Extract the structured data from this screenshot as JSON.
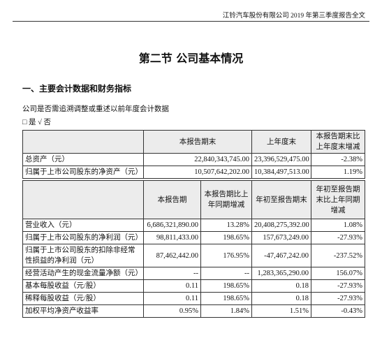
{
  "header": {
    "text": "江铃汽车股份有限公司 2019 年第三季度报告全文"
  },
  "title": "第二节 公司基本情况",
  "section": "一、主要会计数据和财务指标",
  "question": "公司是否需追溯调整或重述以前年度会计数据",
  "answer": "□ 是 √ 否",
  "table1": {
    "headers": [
      "本报告期末",
      "上年度末",
      "本报告期末比上年度末增减"
    ],
    "rows": [
      [
        "总资产（元）",
        "22,840,343,745.00",
        "23,396,529,475.00",
        "-2.38%"
      ],
      [
        "归属于上市公司股东的净资产（元）",
        "10,507,642,202.00",
        "10,384,497,513.00",
        "1.19%"
      ]
    ]
  },
  "table2": {
    "headers": [
      "本报告期",
      "本报告期比上年同期增减",
      "年初至报告期末",
      "年初至报告期末比上年同期增减"
    ],
    "rows": [
      [
        "营业收入（元）",
        "6,686,321,890.00",
        "13.28%",
        "20,408,275,392.00",
        "1.08%"
      ],
      [
        "归属于上市公司股东的净利润（元）",
        "98,811,433.00",
        "198.65%",
        "157,673,249.00",
        "-27.93%"
      ],
      [
        "归属于上市公司股东的扣除非经常性损益的净利润（元）",
        "87,462,442.00",
        "176.95%",
        "-47,467,242.00",
        "-237.52%"
      ],
      [
        "经营活动产生的现金流量净额（元）",
        "--",
        "--",
        "1,283,365,290.00",
        "156.07%"
      ],
      [
        "基本每股收益（元/股）",
        "0.11",
        "198.65%",
        "0.18",
        "-27.93%"
      ],
      [
        "稀释每股收益（元/股）",
        "0.11",
        "198.65%",
        "0.18",
        "-27.93%"
      ],
      [
        "加权平均净资产收益率",
        "0.95%",
        "1.84%",
        "1.51%",
        "-0.43%"
      ]
    ]
  }
}
